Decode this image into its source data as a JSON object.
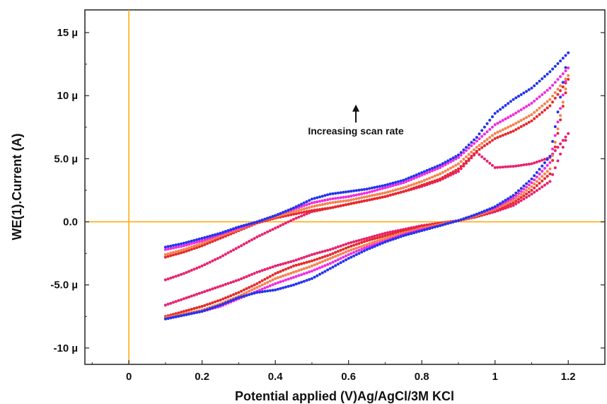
{
  "chart_data": {
    "type": "scatter",
    "title": "",
    "xlabel": "Potential applied (V)Ag/AgCl/3M KCl",
    "ylabel": "WE(1).Current (A)",
    "xlim": [
      -0.12,
      1.3
    ],
    "ylim": [
      -11.3,
      16.8
    ],
    "x_ticks": [
      0,
      0.2,
      0.4,
      0.6,
      0.8,
      1,
      1.2
    ],
    "x_tick_labels": [
      "0",
      "0.2",
      "0.4",
      "0.6",
      "0.8",
      "1",
      "1.2"
    ],
    "y_ticks": [
      15,
      10,
      5,
      0,
      -5,
      -10
    ],
    "y_tick_labels": [
      "15 µ",
      "10 µ",
      "5.0 µ",
      "0.0",
      "-5.0 µ",
      "-10 µ"
    ],
    "grid": false,
    "reference_lines": {
      "x": 0,
      "y": 0,
      "color": "#ffa500"
    },
    "annotation": {
      "text": "Increasing scan rate",
      "x": 0.62,
      "y": 7.2,
      "arrow_to_y": 9.3
    },
    "series": [
      {
        "color": "#e8206e",
        "values": [
          [
            0.1,
            -4.6
          ],
          [
            0.15,
            -4.1
          ],
          [
            0.2,
            -3.5
          ],
          [
            0.25,
            -2.8
          ],
          [
            0.3,
            -2.0
          ],
          [
            0.35,
            -1.2
          ],
          [
            0.4,
            -0.5
          ],
          [
            0.45,
            0.2
          ],
          [
            0.5,
            0.8
          ],
          [
            0.55,
            1.1
          ],
          [
            0.6,
            1.4
          ],
          [
            0.65,
            1.7
          ],
          [
            0.7,
            2.0
          ],
          [
            0.75,
            2.4
          ],
          [
            0.8,
            2.8
          ],
          [
            0.85,
            3.3
          ],
          [
            0.9,
            4.0
          ],
          [
            0.95,
            5.5
          ],
          [
            1.0,
            4.3
          ],
          [
            1.05,
            4.4
          ],
          [
            1.1,
            4.6
          ],
          [
            1.15,
            5.1
          ],
          [
            1.2,
            7.0
          ],
          [
            1.15,
            3.2
          ],
          [
            1.1,
            2.2
          ],
          [
            1.05,
            1.3
          ],
          [
            1.0,
            0.8
          ],
          [
            0.95,
            0.4
          ],
          [
            0.9,
            0.1
          ],
          [
            0.85,
            -0.1
          ],
          [
            0.8,
            -0.3
          ],
          [
            0.75,
            -0.6
          ],
          [
            0.7,
            -0.9
          ],
          [
            0.65,
            -1.3
          ],
          [
            0.6,
            -1.7
          ],
          [
            0.55,
            -2.2
          ],
          [
            0.5,
            -2.6
          ],
          [
            0.45,
            -3.1
          ],
          [
            0.4,
            -3.5
          ],
          [
            0.35,
            -4.0
          ],
          [
            0.3,
            -4.6
          ],
          [
            0.25,
            -5.1
          ],
          [
            0.2,
            -5.6
          ],
          [
            0.15,
            -6.1
          ],
          [
            0.1,
            -6.6
          ]
        ]
      },
      {
        "color": "#e62828",
        "values": [
          [
            0.1,
            -2.8
          ],
          [
            0.15,
            -2.4
          ],
          [
            0.2,
            -1.9
          ],
          [
            0.25,
            -1.3
          ],
          [
            0.3,
            -0.7
          ],
          [
            0.35,
            -0.1
          ],
          [
            0.4,
            0.3
          ],
          [
            0.45,
            0.6
          ],
          [
            0.5,
            0.9
          ],
          [
            0.55,
            1.1
          ],
          [
            0.6,
            1.4
          ],
          [
            0.65,
            1.7
          ],
          [
            0.7,
            2.0
          ],
          [
            0.75,
            2.4
          ],
          [
            0.8,
            2.9
          ],
          [
            0.85,
            3.4
          ],
          [
            0.9,
            4.2
          ],
          [
            0.95,
            5.6
          ],
          [
            1.0,
            6.6
          ],
          [
            1.05,
            7.2
          ],
          [
            1.1,
            8.0
          ],
          [
            1.15,
            9.2
          ],
          [
            1.2,
            11.3
          ],
          [
            1.15,
            3.8
          ],
          [
            1.1,
            2.5
          ],
          [
            1.05,
            1.5
          ],
          [
            1.0,
            0.9
          ],
          [
            0.95,
            0.4
          ],
          [
            0.9,
            0.1
          ],
          [
            0.85,
            -0.1
          ],
          [
            0.8,
            -0.4
          ],
          [
            0.75,
            -0.7
          ],
          [
            0.7,
            -1.1
          ],
          [
            0.65,
            -1.5
          ],
          [
            0.6,
            -2.0
          ],
          [
            0.55,
            -2.6
          ],
          [
            0.5,
            -3.1
          ],
          [
            0.45,
            -3.5
          ],
          [
            0.4,
            -4.1
          ],
          [
            0.35,
            -4.9
          ],
          [
            0.3,
            -5.6
          ],
          [
            0.25,
            -6.2
          ],
          [
            0.2,
            -6.7
          ],
          [
            0.15,
            -7.1
          ],
          [
            0.1,
            -7.5
          ]
        ]
      },
      {
        "color": "#f5824e",
        "values": [
          [
            0.1,
            -2.6
          ],
          [
            0.15,
            -2.2
          ],
          [
            0.2,
            -1.7
          ],
          [
            0.25,
            -1.1
          ],
          [
            0.3,
            -0.6
          ],
          [
            0.35,
            0.0
          ],
          [
            0.4,
            0.4
          ],
          [
            0.45,
            0.8
          ],
          [
            0.5,
            1.2
          ],
          [
            0.55,
            1.5
          ],
          [
            0.6,
            1.7
          ],
          [
            0.65,
            2.0
          ],
          [
            0.7,
            2.3
          ],
          [
            0.75,
            2.7
          ],
          [
            0.8,
            3.2
          ],
          [
            0.85,
            3.8
          ],
          [
            0.9,
            4.6
          ],
          [
            0.95,
            5.9
          ],
          [
            1.0,
            7.0
          ],
          [
            1.05,
            7.7
          ],
          [
            1.1,
            8.5
          ],
          [
            1.15,
            9.7
          ],
          [
            1.2,
            11.6
          ],
          [
            1.15,
            4.2
          ],
          [
            1.1,
            2.8
          ],
          [
            1.05,
            1.7
          ],
          [
            1.0,
            1.0
          ],
          [
            0.95,
            0.5
          ],
          [
            0.9,
            0.1
          ],
          [
            0.85,
            -0.2
          ],
          [
            0.8,
            -0.5
          ],
          [
            0.75,
            -0.9
          ],
          [
            0.7,
            -1.3
          ],
          [
            0.65,
            -1.8
          ],
          [
            0.6,
            -2.3
          ],
          [
            0.55,
            -2.9
          ],
          [
            0.5,
            -3.5
          ],
          [
            0.45,
            -4.0
          ],
          [
            0.4,
            -4.5
          ],
          [
            0.35,
            -5.2
          ],
          [
            0.3,
            -5.9
          ],
          [
            0.25,
            -6.5
          ],
          [
            0.2,
            -7.0
          ],
          [
            0.15,
            -7.3
          ],
          [
            0.1,
            -7.6
          ]
        ]
      },
      {
        "color": "#f02ae0",
        "values": [
          [
            0.1,
            -2.2
          ],
          [
            0.15,
            -1.9
          ],
          [
            0.2,
            -1.5
          ],
          [
            0.25,
            -1.0
          ],
          [
            0.3,
            -0.5
          ],
          [
            0.35,
            0.0
          ],
          [
            0.4,
            0.5
          ],
          [
            0.45,
            1.0
          ],
          [
            0.5,
            1.5
          ],
          [
            0.55,
            1.8
          ],
          [
            0.6,
            2.0
          ],
          [
            0.65,
            2.3
          ],
          [
            0.7,
            2.7
          ],
          [
            0.75,
            3.1
          ],
          [
            0.8,
            3.7
          ],
          [
            0.85,
            4.3
          ],
          [
            0.9,
            5.1
          ],
          [
            0.95,
            6.4
          ],
          [
            1.0,
            7.7
          ],
          [
            1.05,
            8.5
          ],
          [
            1.1,
            9.4
          ],
          [
            1.15,
            10.6
          ],
          [
            1.2,
            12.2
          ],
          [
            1.15,
            4.7
          ],
          [
            1.1,
            3.1
          ],
          [
            1.05,
            1.9
          ],
          [
            1.0,
            1.1
          ],
          [
            0.95,
            0.6
          ],
          [
            0.9,
            0.1
          ],
          [
            0.85,
            -0.3
          ],
          [
            0.8,
            -0.6
          ],
          [
            0.75,
            -1.0
          ],
          [
            0.7,
            -1.5
          ],
          [
            0.65,
            -2.0
          ],
          [
            0.6,
            -2.6
          ],
          [
            0.55,
            -3.3
          ],
          [
            0.5,
            -3.9
          ],
          [
            0.45,
            -4.4
          ],
          [
            0.4,
            -4.9
          ],
          [
            0.35,
            -5.5
          ],
          [
            0.3,
            -6.1
          ],
          [
            0.25,
            -6.7
          ],
          [
            0.2,
            -7.1
          ],
          [
            0.15,
            -7.4
          ],
          [
            0.1,
            -7.7
          ]
        ]
      },
      {
        "color": "#2233ee",
        "values": [
          [
            0.1,
            -2.0
          ],
          [
            0.15,
            -1.7
          ],
          [
            0.2,
            -1.3
          ],
          [
            0.25,
            -0.9
          ],
          [
            0.3,
            -0.4
          ],
          [
            0.35,
            0.0
          ],
          [
            0.4,
            0.5
          ],
          [
            0.45,
            1.1
          ],
          [
            0.5,
            1.8
          ],
          [
            0.55,
            2.2
          ],
          [
            0.6,
            2.4
          ],
          [
            0.65,
            2.6
          ],
          [
            0.7,
            2.9
          ],
          [
            0.75,
            3.3
          ],
          [
            0.8,
            3.9
          ],
          [
            0.85,
            4.5
          ],
          [
            0.9,
            5.3
          ],
          [
            0.95,
            6.7
          ],
          [
            1.0,
            8.6
          ],
          [
            1.05,
            9.7
          ],
          [
            1.1,
            10.6
          ],
          [
            1.15,
            11.9
          ],
          [
            1.2,
            13.4
          ],
          [
            1.15,
            5.2
          ],
          [
            1.1,
            3.4
          ],
          [
            1.05,
            2.1
          ],
          [
            1.0,
            1.2
          ],
          [
            0.95,
            0.6
          ],
          [
            0.9,
            0.1
          ],
          [
            0.85,
            -0.3
          ],
          [
            0.8,
            -0.7
          ],
          [
            0.75,
            -1.1
          ],
          [
            0.7,
            -1.6
          ],
          [
            0.65,
            -2.2
          ],
          [
            0.6,
            -2.9
          ],
          [
            0.55,
            -3.7
          ],
          [
            0.5,
            -4.5
          ],
          [
            0.45,
            -5.0
          ],
          [
            0.4,
            -5.4
          ],
          [
            0.35,
            -5.6
          ],
          [
            0.3,
            -6.0
          ],
          [
            0.25,
            -6.6
          ],
          [
            0.2,
            -7.1
          ],
          [
            0.15,
            -7.4
          ],
          [
            0.1,
            -7.7
          ]
        ]
      }
    ]
  }
}
